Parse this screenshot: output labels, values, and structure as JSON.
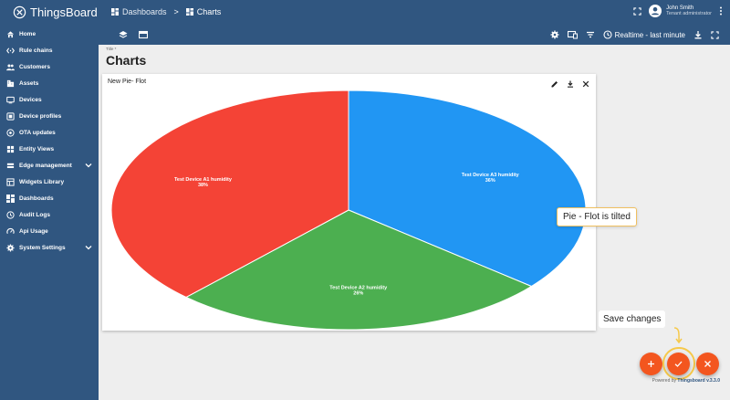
{
  "app": {
    "name": "ThingsBoard"
  },
  "breadcrumb": {
    "dashboards": "Dashboards",
    "separator": ">",
    "current": "Charts"
  },
  "user": {
    "name": "John Smith",
    "role": "Tenant administrator"
  },
  "sidebar": {
    "items": [
      {
        "label": "Home",
        "icon": "home-icon"
      },
      {
        "label": "Rule chains",
        "icon": "rule-chains-icon"
      },
      {
        "label": "Customers",
        "icon": "customers-icon"
      },
      {
        "label": "Assets",
        "icon": "assets-icon"
      },
      {
        "label": "Devices",
        "icon": "devices-icon"
      },
      {
        "label": "Device profiles",
        "icon": "device-profiles-icon"
      },
      {
        "label": "OTA updates",
        "icon": "ota-updates-icon"
      },
      {
        "label": "Entity Views",
        "icon": "entity-views-icon"
      },
      {
        "label": "Edge management",
        "icon": "edge-icon",
        "expandable": true
      },
      {
        "label": "Widgets Library",
        "icon": "widgets-icon"
      },
      {
        "label": "Dashboards",
        "icon": "dashboards-icon"
      },
      {
        "label": "Audit Logs",
        "icon": "audit-logs-icon"
      },
      {
        "label": "Api Usage",
        "icon": "api-usage-icon"
      },
      {
        "label": "System Settings",
        "icon": "settings-icon",
        "expandable": true
      }
    ]
  },
  "toolbar": {
    "time_window": "Realtime - last minute"
  },
  "dashboard": {
    "title_label": "Title *",
    "title": "Charts"
  },
  "widget": {
    "title": "New Pie- Flot"
  },
  "chart_data": {
    "type": "pie",
    "title": "New Pie- Flot",
    "slices": [
      {
        "label": "Test Device A1 humidity",
        "value": 38,
        "display": "38%",
        "color": "#f44336"
      },
      {
        "label": "Test Device A2 humidity",
        "value": 26,
        "display": "26%",
        "color": "#4caf50"
      },
      {
        "label": "Test Device A3 humidity",
        "value": 36,
        "display": "36%",
        "color": "#2196f3"
      }
    ]
  },
  "annotations": {
    "tilted_note": "Pie - Flot is tilted",
    "save_note": "Save changes"
  },
  "footer": {
    "powered_prefix": "Powered by",
    "powered_brand": "Thingsboard v.3.3.0"
  },
  "colors": {
    "primary": "#305680",
    "accent": "#f3561f",
    "highlight": "#f6c94a"
  }
}
